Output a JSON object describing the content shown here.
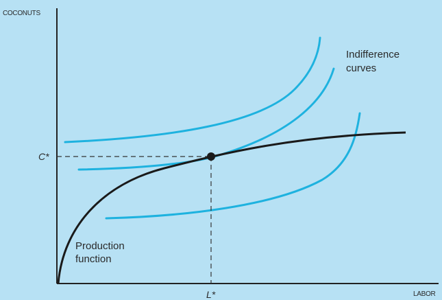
{
  "axes": {
    "y_label": "COCONUTS",
    "x_label": "LABOR"
  },
  "markers": {
    "c_star": "C*",
    "l_star": "L*"
  },
  "labels": {
    "indifference": [
      "Indifference",
      "curves"
    ],
    "production": [
      "Production",
      "function"
    ]
  }
}
